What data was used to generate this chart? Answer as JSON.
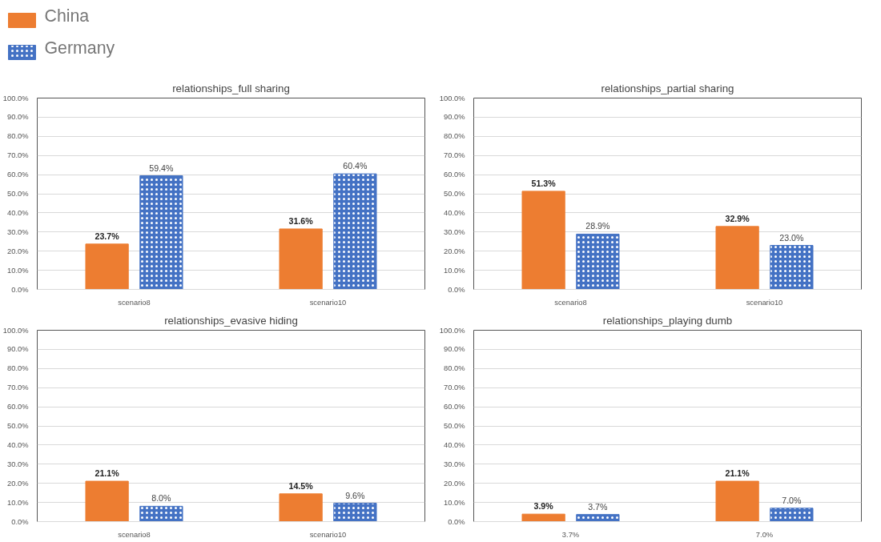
{
  "chart_data": [
    {
      "type": "bar",
      "title": "relationships_full sharing",
      "categories": [
        "scenario8",
        "scenario10"
      ],
      "legend": "top left",
      "grid": "y",
      "ylim": [
        0,
        100
      ],
      "yticks": [
        {
          "value": 0,
          "label": "0.0%"
        },
        {
          "value": 10,
          "label": "10.0%"
        },
        {
          "value": 20,
          "label": "20.0%"
        },
        {
          "value": 30,
          "label": "30.0%"
        },
        {
          "value": 40,
          "label": "40.0%"
        },
        {
          "value": 50,
          "label": "50.0%"
        },
        {
          "value": 60,
          "label": "60.0%"
        },
        {
          "value": 70,
          "label": "70.0%"
        },
        {
          "value": 80,
          "label": "80.0%"
        },
        {
          "value": 90,
          "label": "90.0%"
        },
        {
          "value": 100,
          "label": "100.0%"
        }
      ],
      "series": [
        {
          "name": "China",
          "color": "#ed7d31",
          "values": [
            23.7,
            31.6
          ],
          "value_labels": [
            "23.7%",
            "31.6%"
          ]
        },
        {
          "name": "Germany",
          "color": "#4472c4",
          "values": [
            59.4,
            60.4
          ],
          "value_labels": [
            "59.4%",
            "60.4%"
          ]
        }
      ]
    },
    {
      "type": "bar",
      "title": "relationships_partial sharing",
      "categories": [
        "scenario8",
        "scenario10"
      ],
      "grid": "y",
      "ylim": [
        0,
        100
      ],
      "yticks": [
        {
          "value": 0,
          "label": "0.0%"
        },
        {
          "value": 10,
          "label": "10.0%"
        },
        {
          "value": 20,
          "label": "20.0%"
        },
        {
          "value": 30,
          "label": "30.0%"
        },
        {
          "value": 40,
          "label": "40.0%"
        },
        {
          "value": 50,
          "label": "50.0%"
        },
        {
          "value": 60,
          "label": "60.0%"
        },
        {
          "value": 70,
          "label": "70.0%"
        },
        {
          "value": 80,
          "label": "80.0%"
        },
        {
          "value": 90,
          "label": "90.0%"
        },
        {
          "value": 100,
          "label": "100.0%"
        }
      ],
      "series": [
        {
          "color": "#ed7d31",
          "values": [
            51.3,
            32.9
          ],
          "value_labels": [
            "51.3%",
            "32.9%"
          ]
        },
        {
          "color": "#4472c4",
          "values": [
            28.9,
            23.0
          ],
          "value_labels": [
            "28.9%",
            "23.0%"
          ]
        }
      ]
    },
    {
      "type": "bar",
      "title": "relationships_evasive hiding",
      "categories": [
        "scenario8",
        "scenario10"
      ],
      "grid": "y",
      "ylim": [
        0,
        100
      ],
      "yticks": [
        {
          "value": 0,
          "label": "0.0%"
        },
        {
          "value": 10,
          "label": "10.0%"
        },
        {
          "value": 20,
          "label": "20.0%"
        },
        {
          "value": 30,
          "label": "30.0%"
        },
        {
          "value": 40,
          "label": "40.0%"
        },
        {
          "value": 50,
          "label": "50.0%"
        },
        {
          "value": 60,
          "label": "60.0%"
        },
        {
          "value": 70,
          "label": "70.0%"
        },
        {
          "value": 80,
          "label": "80.0%"
        },
        {
          "value": 90,
          "label": "90.0%"
        },
        {
          "value": 100,
          "label": "100.0%"
        }
      ],
      "series": [
        {
          "color": "#ed7d31",
          "values": [
            21.1,
            14.5
          ],
          "value_labels": [
            "21.1%",
            "14.5%"
          ]
        },
        {
          "color": "#4472c4",
          "values": [
            8.0,
            9.6
          ],
          "value_labels": [
            "8.0%",
            "9.6%"
          ]
        }
      ]
    },
    {
      "type": "bar",
      "title": "relationships_playing dumb",
      "categories": [
        "3.7%",
        "7.0%"
      ],
      "grid": "y",
      "ylim": [
        0,
        100
      ],
      "yticks": [
        {
          "value": 0,
          "label": "0.0%"
        },
        {
          "value": 10,
          "label": "10.0%"
        },
        {
          "value": 20,
          "label": "20.0%"
        },
        {
          "value": 30,
          "label": "30.0%"
        },
        {
          "value": 40,
          "label": "40.0%"
        },
        {
          "value": 50,
          "label": "50.0%"
        },
        {
          "value": 60,
          "label": "60.0%"
        },
        {
          "value": 70,
          "label": "70.0%"
        },
        {
          "value": 80,
          "label": "80.0%"
        },
        {
          "value": 90,
          "label": "90.0%"
        },
        {
          "value": 100,
          "label": "100.0%"
        }
      ],
      "series": [
        {
          "color": "#ed7d31",
          "values": [
            3.9,
            21.1
          ],
          "value_labels": [
            "3.9%",
            "21.1%"
          ]
        },
        {
          "color": "#4472c4",
          "values": [
            3.7,
            7.0
          ],
          "value_labels": [
            "3.7%",
            "7.0%"
          ]
        }
      ]
    }
  ]
}
